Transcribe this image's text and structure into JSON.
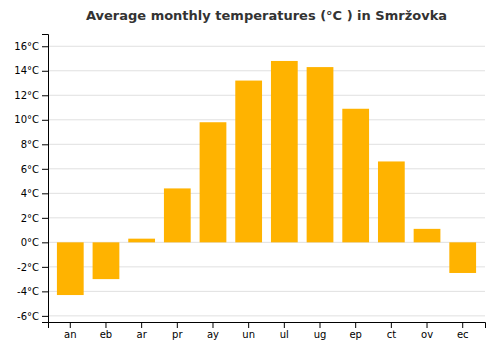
{
  "chart_data": {
    "type": "bar",
    "title": "Average monthly temperatures (°C ) in Smržovka",
    "categories": [
      "an",
      "eb",
      "ar",
      "pr",
      "ay",
      "un",
      "ul",
      "ug",
      "ep",
      "ct",
      "ov",
      "ec"
    ],
    "values": [
      -4.3,
      -3.0,
      0.3,
      4.4,
      9.8,
      13.2,
      14.8,
      14.3,
      10.9,
      6.6,
      1.1,
      -2.5
    ],
    "color": "#FFB300",
    "ylim": [
      -6.5,
      17.0
    ],
    "yticks": [
      {
        "value": -6,
        "label": "-6°C"
      },
      {
        "value": -4,
        "label": "-4°C"
      },
      {
        "value": -2,
        "label": "-2°C"
      },
      {
        "value": 0,
        "label": "0°C"
      },
      {
        "value": 2,
        "label": "2°C"
      },
      {
        "value": 4,
        "label": "4°C"
      },
      {
        "value": 6,
        "label": "6°C"
      },
      {
        "value": 8,
        "label": "8°C"
      },
      {
        "value": 10,
        "label": "10°C"
      },
      {
        "value": 12,
        "label": "12°C"
      },
      {
        "value": 14,
        "label": "14°C"
      },
      {
        "value": 16,
        "label": "16°C"
      }
    ],
    "grid": true
  }
}
